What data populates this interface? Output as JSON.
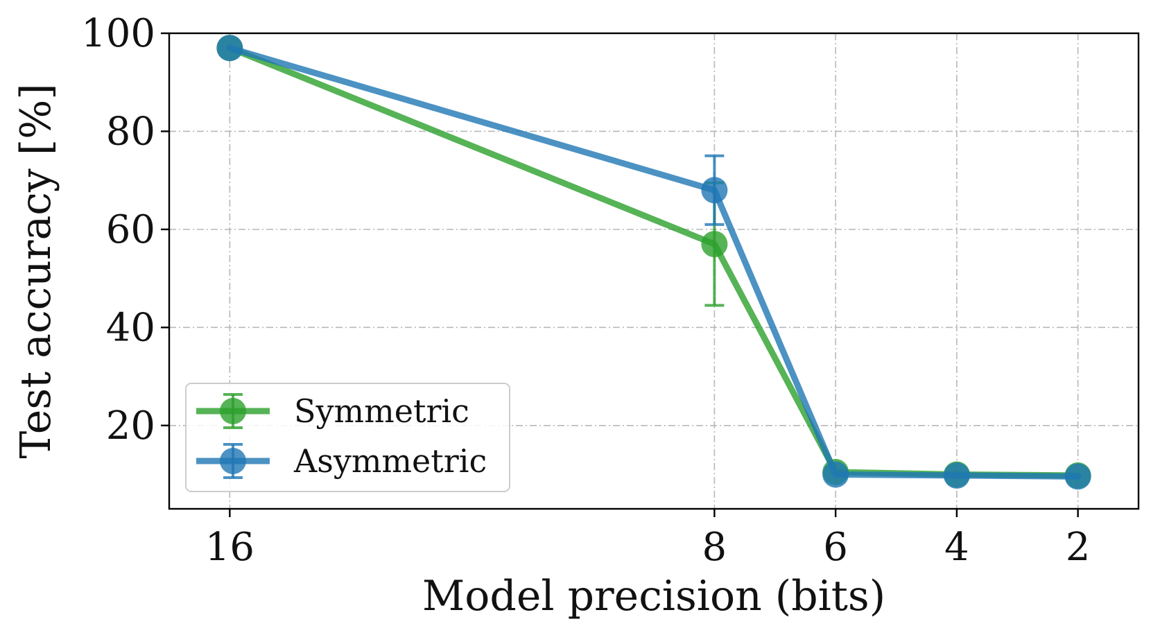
{
  "chart_data": {
    "type": "line",
    "title": "",
    "xlabel": "Model precision (bits)",
    "ylabel": "Test accuracy [%]",
    "categories": [
      "16",
      "8",
      "6",
      "4",
      "2"
    ],
    "x": [
      16,
      8,
      6,
      4,
      2
    ],
    "x_inverted": true,
    "xlim": [
      17,
      1
    ],
    "ylim": [
      3,
      100
    ],
    "yticks": [
      20,
      40,
      60,
      80,
      100
    ],
    "grid": true,
    "legend": "lower-left",
    "series": [
      {
        "name": "Symmetric",
        "color": "#2ca02c",
        "values": [
          97,
          57,
          10.5,
          10,
          9.8
        ],
        "errors": [
          0.5,
          12.5,
          0.3,
          0.3,
          0.2
        ]
      },
      {
        "name": "Asymmetric",
        "color": "#1f77b4",
        "values": [
          97,
          68,
          10,
          9.8,
          9.6
        ],
        "errors": [
          0.5,
          7,
          0.3,
          0.3,
          0.2
        ]
      }
    ]
  }
}
